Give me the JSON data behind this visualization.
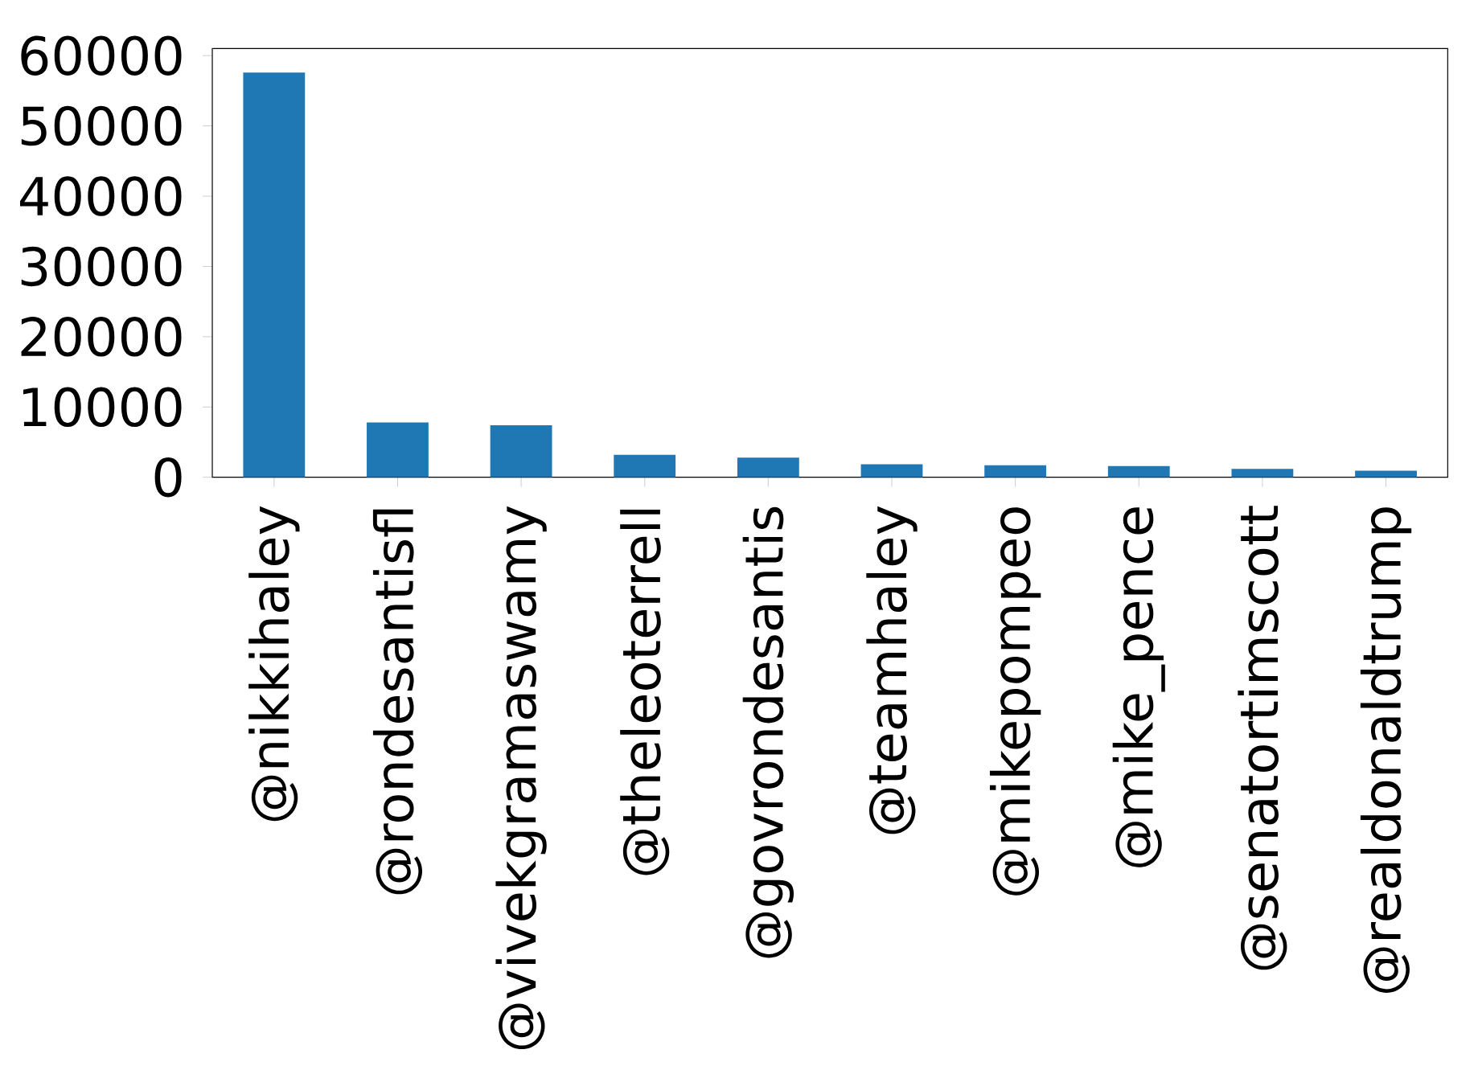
{
  "chart_data": {
    "type": "bar",
    "categories": [
      "@nikkihaley",
      "@rondesantisfl",
      "@vivekgramaswamy",
      "@theleoterrell",
      "@govrondesantis",
      "@teamhaley",
      "@mikepompeo",
      "@mike_pence",
      "@senatortimscott",
      "@realdonaldtrump"
    ],
    "values": [
      57600,
      7800,
      7400,
      3200,
      2800,
      1850,
      1700,
      1600,
      1200,
      950
    ],
    "color": "#1f77b4",
    "ylim": [
      0,
      61000
    ],
    "yticks": [
      0,
      10000,
      20000,
      30000,
      40000,
      50000,
      60000
    ],
    "grid": false
  }
}
